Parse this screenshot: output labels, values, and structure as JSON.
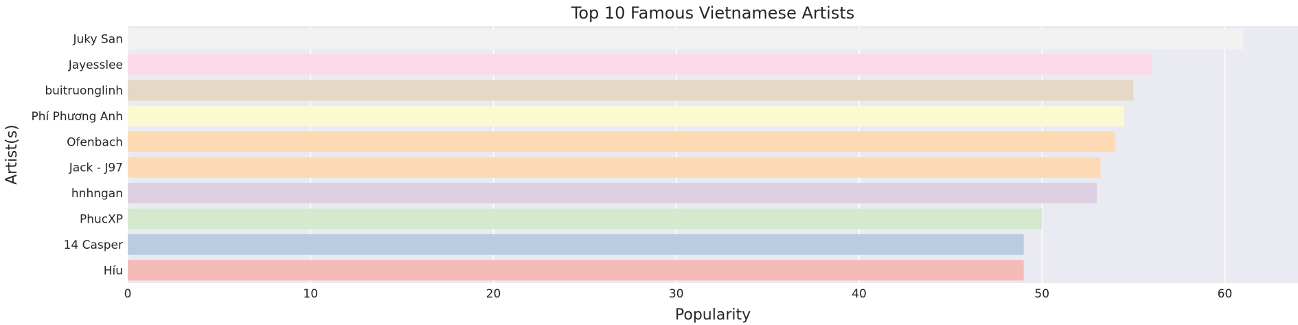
{
  "chart_data": {
    "type": "bar",
    "orientation": "horizontal",
    "title": "Top 10 Famous Vietnamese Artists",
    "xlabel": "Popularity",
    "ylabel": "Artist(s)",
    "xlim": [
      0,
      64
    ],
    "xticks": [
      "0",
      "10",
      "20",
      "30",
      "40",
      "50",
      "60"
    ],
    "grid": true,
    "categories": [
      "Juky San",
      "Jayesslee",
      "buitruonglinh",
      "Phí Phương Anh",
      "Ofenbach",
      "Jack - J97",
      "hnhngan",
      "PhucXP",
      "14 Casper",
      "Híu"
    ],
    "values": [
      61,
      56,
      55,
      54.5,
      54,
      53.2,
      53,
      50,
      49,
      49
    ],
    "colors": [
      "#f2f2f2",
      "#fbdaea",
      "#e5d8c5",
      "#fbf9cf",
      "#fdd9b4",
      "#fcdbb4",
      "#ddd0e3",
      "#d4eacf",
      "#b9cce0",
      "#f5bbb8"
    ],
    "background": "#eaeaf2"
  }
}
